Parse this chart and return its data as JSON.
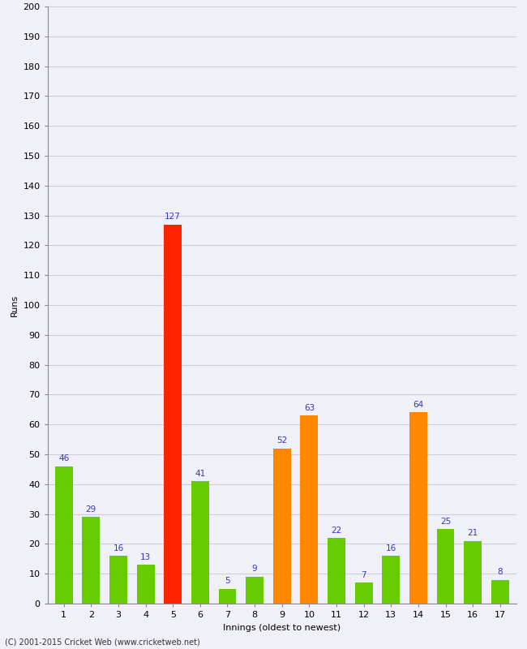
{
  "xlabel": "Innings (oldest to newest)",
  "ylabel": "Runs",
  "categories": [
    "1",
    "2",
    "3",
    "4",
    "5",
    "6",
    "7",
    "8",
    "9",
    "10",
    "11",
    "12",
    "13",
    "14",
    "15",
    "16",
    "17"
  ],
  "values": [
    46,
    29,
    16,
    13,
    127,
    41,
    5,
    9,
    52,
    63,
    22,
    7,
    16,
    64,
    25,
    21,
    8
  ],
  "bar_colors": [
    "#66cc00",
    "#66cc00",
    "#66cc00",
    "#66cc00",
    "#ff2200",
    "#66cc00",
    "#66cc00",
    "#66cc00",
    "#ff8800",
    "#ff8800",
    "#66cc00",
    "#66cc00",
    "#66cc00",
    "#ff8800",
    "#66cc00",
    "#66cc00",
    "#66cc00"
  ],
  "ylim": [
    0,
    200
  ],
  "yticks": [
    0,
    10,
    20,
    30,
    40,
    50,
    60,
    70,
    80,
    90,
    100,
    110,
    120,
    130,
    140,
    150,
    160,
    170,
    180,
    190,
    200
  ],
  "label_color": "#3333cc",
  "label_fontsize": 7.5,
  "axis_label_fontsize": 8,
  "tick_fontsize": 8,
  "background_color": "#f0f0f8",
  "plot_bg_color": "#f0f0f8",
  "grid_color": "#ccccdd",
  "footer": "(C) 2001-2015 Cricket Web (www.cricketweb.net)",
  "footer_fontsize": 7,
  "bar_width": 0.65
}
